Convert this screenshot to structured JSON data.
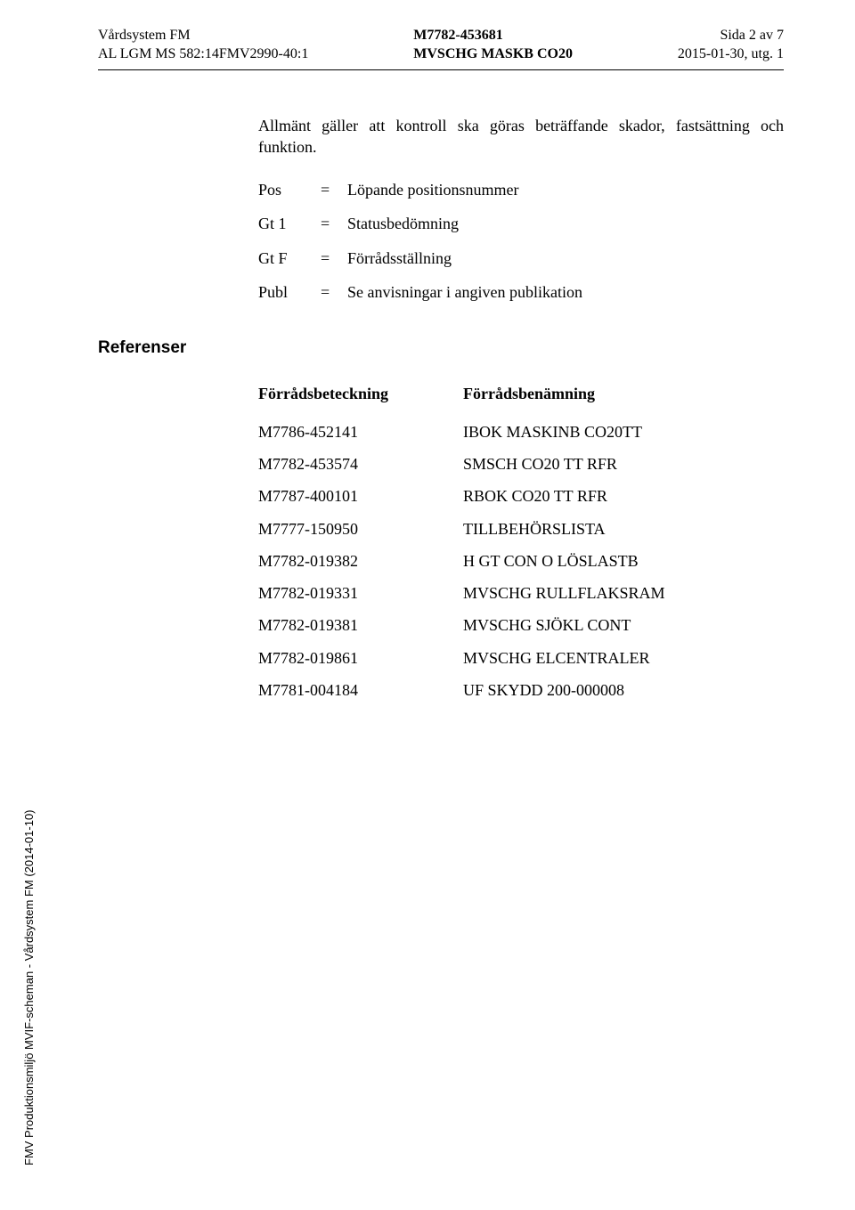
{
  "header": {
    "left_line1": "Vårdsystem FM",
    "left_line2": "AL LGM MS 582:14FMV2990-40:1",
    "center_line1": "M7782-453681",
    "center_line2": "MVSCHG MASKB CO20",
    "right_line1": "Sida 2 av 7",
    "right_line2": "2015-01-30, utg. 1"
  },
  "intro": "Allmänt gäller att kontroll ska göras beträffande skador, fastsättning och funktion.",
  "definitions": [
    {
      "key": "Pos",
      "eq": "=",
      "val": "Löpande positionsnummer"
    },
    {
      "key": "Gt 1",
      "eq": "=",
      "val": "Statusbedömning"
    },
    {
      "key": "Gt F",
      "eq": "=",
      "val": "Förrådsställning"
    },
    {
      "key": "Publ",
      "eq": "=",
      "val": "Se anvisningar i angiven publikation"
    }
  ],
  "sections": {
    "referenser": {
      "title": "Referenser",
      "col1": "Förrådsbeteckning",
      "col2": "Förrådsbenämning",
      "rows": [
        {
          "c1": "M7786-452141",
          "c2": "IBOK MASKINB CO20TT"
        },
        {
          "c1": "M7782-453574",
          "c2": "SMSCH CO20 TT RFR"
        },
        {
          "c1": "M7787-400101",
          "c2": "RBOK CO20 TT RFR"
        },
        {
          "c1": "M7777-150950",
          "c2": "TILLBEHÖRSLISTA"
        },
        {
          "c1": "M7782-019382",
          "c2": "H GT CON O LÖSLASTB"
        },
        {
          "c1": "M7782-019331",
          "c2": "MVSCHG RULLFLAKSRAM"
        },
        {
          "c1": "M7782-019381",
          "c2": "MVSCHG SJÖKL CONT"
        },
        {
          "c1": "M7782-019861",
          "c2": "MVSCHG ELCENTRALER"
        },
        {
          "c1": "M7781-004184",
          "c2": "UF SKYDD 200-000008"
        }
      ]
    }
  },
  "side_text": "FMV Produktionsmiljö MVIF-scheman - Vårdsystem FM (2014-01-10)"
}
